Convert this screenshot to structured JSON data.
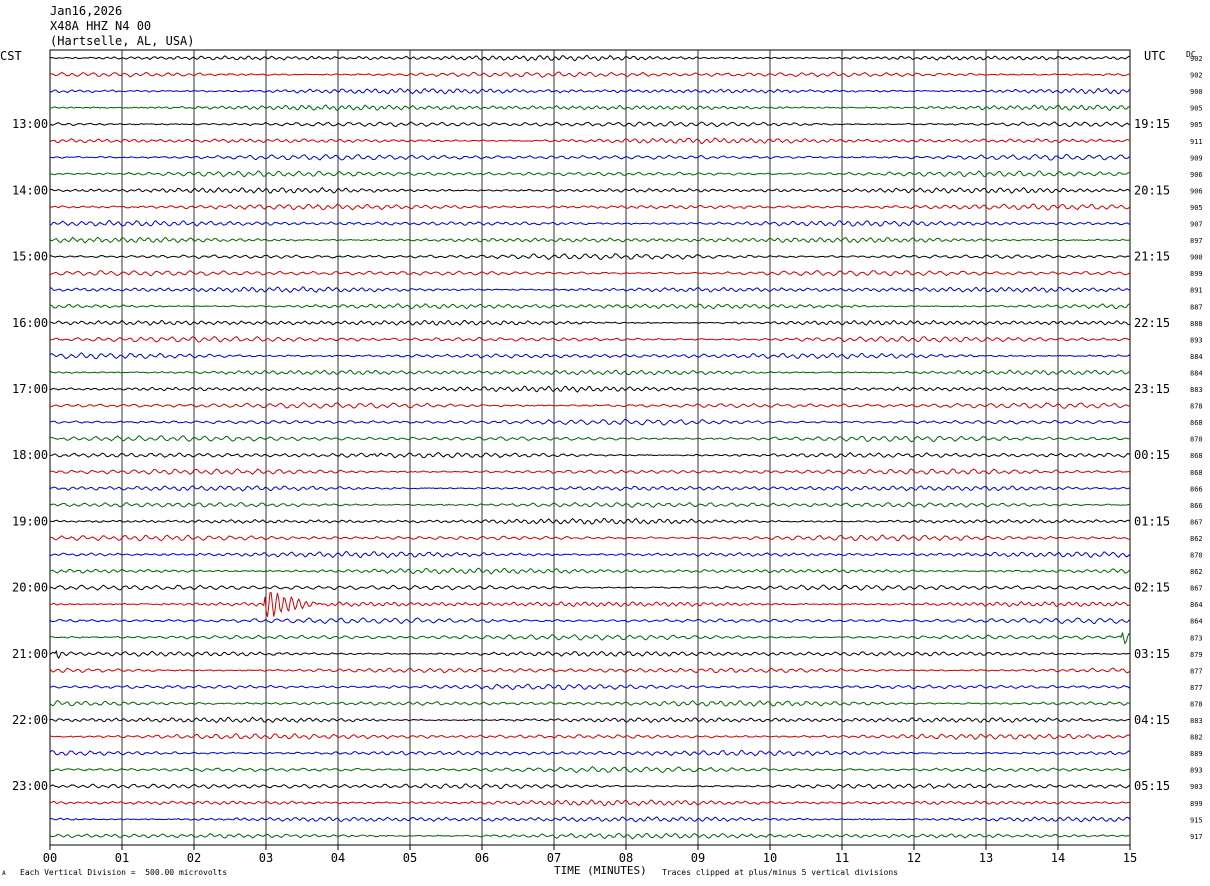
{
  "header": {
    "date": "Jan16,2026",
    "station": "X48A HHZ N4 00",
    "location": "(Hartselle, AL, USA)"
  },
  "left_zone": "CST",
  "right_zone": "UTC",
  "dc_label": "DC",
  "footer": {
    "scale_note": "Each Vertical Division =  500.00 microvolts",
    "clip_note": "Traces clipped at plus/minus 5 vertical divisions",
    "marker": "A"
  },
  "chart_data": {
    "type": "line",
    "title": "",
    "xlabel": "TIME (MINUTES)",
    "xlim": [
      0,
      15
    ],
    "x_ticks": [
      "00",
      "01",
      "02",
      "03",
      "04",
      "05",
      "06",
      "07",
      "08",
      "09",
      "10",
      "11",
      "12",
      "13",
      "14",
      "15"
    ],
    "grid": true,
    "row_count": 48,
    "rows_per_hour": 4,
    "trace_colors": [
      "#000000",
      "#cc0000",
      "#0000cc",
      "#006600"
    ],
    "left_hour_labels": [
      {
        "row": 4,
        "label": "13:00"
      },
      {
        "row": 8,
        "label": "14:00"
      },
      {
        "row": 12,
        "label": "15:00"
      },
      {
        "row": 16,
        "label": "16:00"
      },
      {
        "row": 20,
        "label": "17:00"
      },
      {
        "row": 24,
        "label": "18:00"
      },
      {
        "row": 28,
        "label": "19:00"
      },
      {
        "row": 32,
        "label": "20:00"
      },
      {
        "row": 36,
        "label": "21:00"
      },
      {
        "row": 40,
        "label": "22:00"
      },
      {
        "row": 44,
        "label": "23:00"
      }
    ],
    "right_hour_labels": [
      {
        "row": 4,
        "label": "19:15"
      },
      {
        "row": 8,
        "label": "20:15"
      },
      {
        "row": 12,
        "label": "21:15"
      },
      {
        "row": 16,
        "label": "22:15"
      },
      {
        "row": 20,
        "label": "23:15"
      },
      {
        "row": 24,
        "label": "00:15"
      },
      {
        "row": 28,
        "label": "01:15"
      },
      {
        "row": 32,
        "label": "02:15"
      },
      {
        "row": 36,
        "label": "03:15"
      },
      {
        "row": 40,
        "label": "04:15"
      },
      {
        "row": 44,
        "label": "05:15"
      }
    ],
    "dc_offsets": [
      902,
      902,
      900,
      905,
      905,
      911,
      909,
      906,
      906,
      905,
      907,
      897,
      900,
      899,
      891,
      887,
      888,
      893,
      884,
      884,
      883,
      878,
      868,
      870,
      868,
      868,
      866,
      866,
      867,
      862,
      870,
      862,
      867,
      864,
      864,
      873,
      879,
      877,
      877,
      878,
      883,
      882,
      889,
      893,
      903,
      899,
      915,
      917
    ],
    "events": [
      {
        "row": 33,
        "minute": 3.0,
        "amplitude": "large",
        "duration_min": 0.9
      },
      {
        "row": 35,
        "minute": 14.9,
        "amplitude": "medium",
        "duration_min": 0.25
      },
      {
        "row": 36,
        "minute": 0.1,
        "amplitude": "small",
        "duration_min": 0.15
      },
      {
        "row": 24,
        "minute": 4.5,
        "amplitude": "small",
        "duration_min": 0.1
      }
    ]
  }
}
